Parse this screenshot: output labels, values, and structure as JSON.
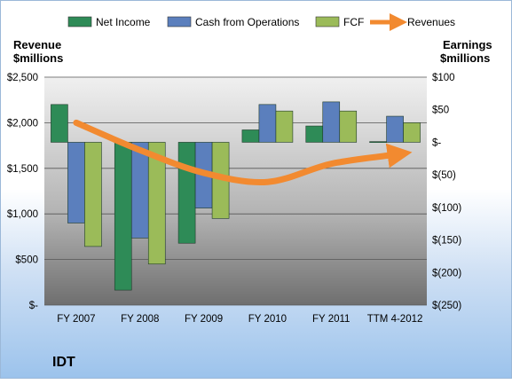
{
  "chart_data": {
    "type": "bar",
    "title": "IDT",
    "left_axis_title": [
      "Revenue",
      "$millions"
    ],
    "right_axis_title": [
      "Earnings",
      "$millions"
    ],
    "categories": [
      "FY 2007",
      "FY 2008",
      "FY 2009",
      "FY 2010",
      "FY 2011",
      "TTM 4-2012"
    ],
    "left_axis": {
      "ylim": [
        0,
        2500
      ],
      "ticks": [
        "$-",
        "$500",
        "$1,000",
        "$1,500",
        "$2,000",
        "$2,500"
      ]
    },
    "right_axis": {
      "ylim": [
        -250,
        100
      ],
      "ticks": [
        "$(250)",
        "$(200)",
        "$(150)",
        "$(100)",
        "$(50)",
        "$-",
        "$50",
        "$100"
      ]
    },
    "series": [
      {
        "name": "Net Income",
        "axis": "right",
        "color": "#2e8b57",
        "values": [
          58,
          -227,
          -155,
          19,
          25,
          1
        ]
      },
      {
        "name": "Cash from Operations",
        "axis": "right",
        "color": "#5b7fbd",
        "values": [
          -124,
          -147,
          -101,
          58,
          62,
          40
        ]
      },
      {
        "name": "FCF",
        "axis": "right",
        "color": "#9bbb59",
        "values": [
          -160,
          -187,
          -117,
          48,
          48,
          30
        ]
      },
      {
        "name": "Revenues",
        "axis": "left",
        "type": "line",
        "color": "#f28a30",
        "values": [
          2000,
          1700,
          1450,
          1350,
          1550,
          1650
        ]
      }
    ],
    "grid": true,
    "legend": "top"
  }
}
